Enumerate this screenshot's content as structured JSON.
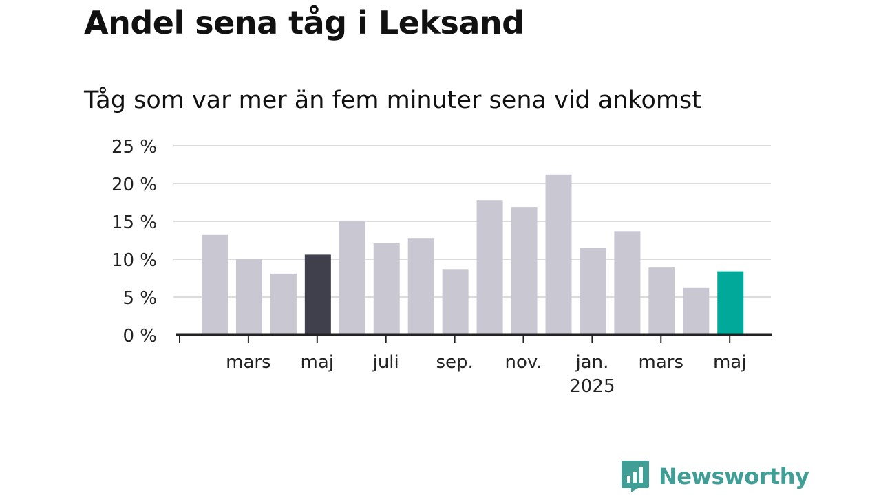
{
  "header": {
    "title": "Andel sena tåg i Leksand",
    "subtitle": "Tåg som var mer än fem minuter sena vid ankomst"
  },
  "colors": {
    "bar_default": "#c9c8d2",
    "bar_highlight_dark": "#403f4c",
    "bar_highlight_latest": "#00a99a",
    "grid": "#dcdcdc",
    "axis": "#222222",
    "brand": "#3f9e96"
  },
  "brand": {
    "name": "Newsworthy",
    "icon": "newsworthy-logo-icon"
  },
  "chart_data": {
    "type": "bar",
    "title": "Andel sena tåg i Leksand",
    "subtitle": "Tåg som var mer än fem minuter sena vid ankomst",
    "xlabel": "",
    "ylabel": "",
    "ylim": [
      0,
      25
    ],
    "grid": true,
    "y_ticks": [
      {
        "value": 0,
        "label": "0 %"
      },
      {
        "value": 5,
        "label": "5 %"
      },
      {
        "value": 10,
        "label": "10 %"
      },
      {
        "value": 15,
        "label": "15 %"
      },
      {
        "value": 20,
        "label": "20 %"
      },
      {
        "value": 25,
        "label": "25 %"
      }
    ],
    "x_tick_labels": [
      {
        "label": "mars",
        "sub": ""
      },
      {
        "label": "maj",
        "sub": ""
      },
      {
        "label": "juli",
        "sub": ""
      },
      {
        "label": "sep.",
        "sub": ""
      },
      {
        "label": "nov.",
        "sub": ""
      },
      {
        "label": "jan.",
        "sub": "2025"
      },
      {
        "label": "mars",
        "sub": ""
      },
      {
        "label": "maj",
        "sub": ""
      }
    ],
    "categories": [
      "2024-02",
      "2024-03",
      "2024-04",
      "2024-05",
      "2024-06",
      "2024-07",
      "2024-08",
      "2024-09",
      "2024-10",
      "2024-11",
      "2024-12",
      "2025-01",
      "2025-02",
      "2025-03",
      "2025-04",
      "2025-05"
    ],
    "values": [
      13.2,
      10.0,
      8.1,
      10.6,
      15.1,
      12.1,
      12.8,
      8.7,
      17.8,
      16.9,
      21.2,
      11.5,
      13.7,
      8.9,
      6.2,
      8.4
    ],
    "highlight": {
      "2024-05": "dark",
      "2025-05": "latest"
    }
  }
}
